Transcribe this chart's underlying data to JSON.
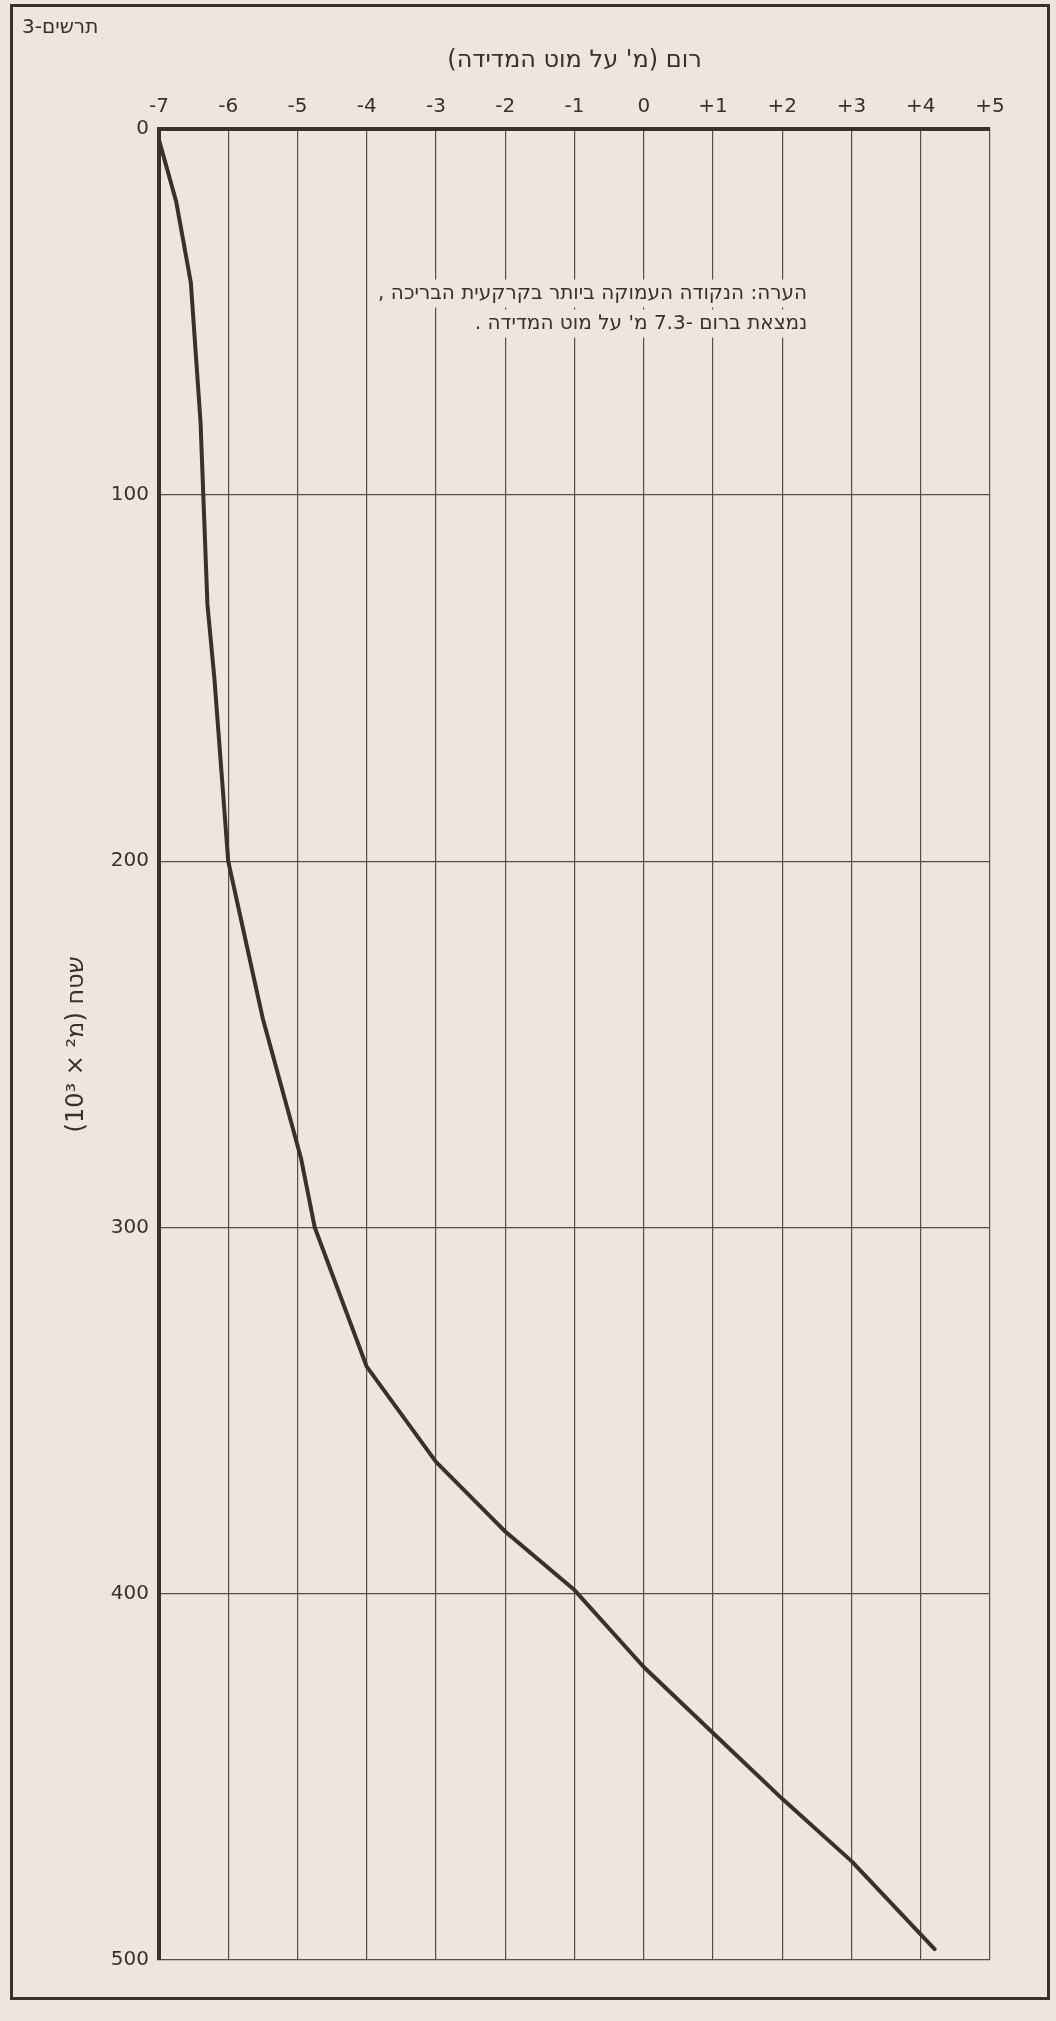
{
  "chart_data": {
    "type": "line",
    "xlabel": "רום (מ' על מוט המדידה)",
    "ylabel": "שטח (מ² × 10³)",
    "x": [
      -7,
      -6.75,
      -6.54,
      -6.4,
      -6.36,
      -6.3,
      -6.2,
      -6,
      -5.5,
      -4.95,
      -4.75,
      -4,
      -3,
      -2,
      -1,
      0,
      1,
      2,
      3,
      4.2
    ],
    "values": [
      3,
      20,
      42,
      80,
      100,
      130,
      150,
      200,
      243,
      281,
      300,
      338,
      364,
      383,
      399,
      420,
      438,
      456,
      473,
      497
    ],
    "color": "#3b302c",
    "marker": "none",
    "line_style": "solid",
    "grid": true,
    "ylim": [
      500,
      0
    ],
    "yticks": [
      0,
      100,
      200,
      300,
      400,
      500
    ],
    "xlim": [
      -7,
      5
    ],
    "xticks": [
      -7,
      -6,
      -5,
      -4,
      -3,
      -2,
      -1,
      0,
      {
        "value": 1,
        "label": "+1"
      },
      {
        "value": 2,
        "label": "+2"
      },
      {
        "value": 3,
        "label": "+3"
      },
      {
        "value": 4,
        "label": "+4"
      },
      {
        "value": 5,
        "label": "+5"
      }
    ],
    "annotations": [
      "הערה: הנקודה העמוקה ביותר בקרקעית הבריכה ,",
      "נמצאת ברום -7.3 מ' על מוט המדידה .",
      "תרשים-3"
    ]
  }
}
